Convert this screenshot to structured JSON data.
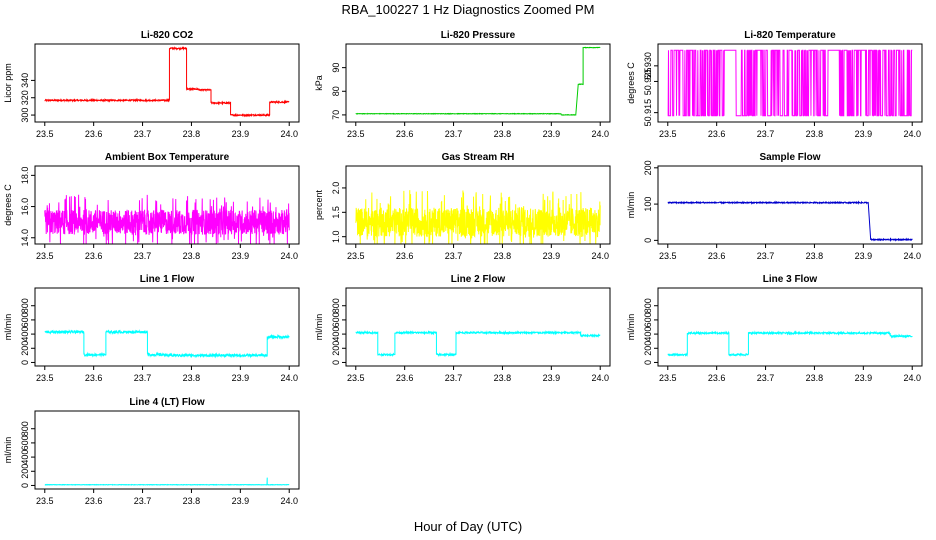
{
  "figure": {
    "title": "RBA_100227  1 Hz Diagnostics Zoomed PM",
    "xlabel": "Hour of Day (UTC)"
  },
  "colors": {
    "red": "#ff0000",
    "green": "#00cc00",
    "magenta": "#ff00ff",
    "yellow": "#ffff00",
    "blue": "#0000cc",
    "cyan": "#00ffff"
  },
  "chart_data": [
    {
      "type": "line",
      "title": "Li-820 CO2",
      "ylabel": "Licor ppm",
      "color": "red",
      "xlim": [
        23.48,
        24.02
      ],
      "ylim": [
        292,
        382
      ],
      "xticks": [
        "23.5",
        "23.6",
        "23.7",
        "23.8",
        "23.9",
        "24.0"
      ],
      "yticks": [
        "300",
        "320",
        "340"
      ],
      "segments": [
        [
          23.5,
          23.755,
          317
        ],
        [
          23.755,
          23.79,
          377
        ],
        [
          23.79,
          23.815,
          330
        ],
        [
          23.815,
          23.84,
          329
        ],
        [
          23.84,
          23.88,
          314
        ],
        [
          23.88,
          23.96,
          300
        ],
        [
          23.96,
          24.0,
          315
        ]
      ],
      "noise": 0.8
    },
    {
      "type": "line",
      "title": "Li-820 Pressure",
      "ylabel": "kPa",
      "color": "green",
      "xlim": [
        23.48,
        24.02
      ],
      "ylim": [
        67,
        100
      ],
      "xticks": [
        "23.5",
        "23.6",
        "23.7",
        "23.8",
        "23.9",
        "24.0"
      ],
      "yticks": [
        "70",
        "80",
        "90"
      ],
      "segments": [
        [
          23.5,
          23.92,
          70.5
        ],
        [
          23.92,
          23.95,
          70.0
        ],
        [
          23.955,
          23.965,
          83
        ],
        [
          23.965,
          24.0,
          98.5
        ]
      ],
      "noise": 0.1
    },
    {
      "type": "line",
      "title": "Li-820 Temperature",
      "ylabel": "degrees C",
      "color": "magenta",
      "xlim": [
        23.48,
        24.02
      ],
      "ylim": [
        50.912,
        50.937
      ],
      "xticks": [
        "23.5",
        "23.6",
        "23.7",
        "23.8",
        "23.9",
        "24.0"
      ],
      "yticks": [
        "50.915",
        "50.925",
        "50.930"
      ],
      "levels": [
        50.914,
        50.935
      ],
      "toggle": true
    },
    {
      "type": "line",
      "title": "Ambient Box Temperature",
      "ylabel": "degrees C",
      "color": "magenta",
      "xlim": [
        23.48,
        24.02
      ],
      "ylim": [
        13.6,
        18.6
      ],
      "xticks": [
        "23.5",
        "23.6",
        "23.7",
        "23.8",
        "23.9",
        "24.0"
      ],
      "yticks": [
        "14.0",
        "16.0",
        "18.0"
      ],
      "base": 15.0,
      "spread": 1.6
    },
    {
      "type": "line",
      "title": "Gas Stream RH",
      "ylabel": "percent",
      "color": "yellow",
      "xlim": [
        23.48,
        24.02
      ],
      "ylim": [
        0.85,
        2.45
      ],
      "xticks": [
        "23.5",
        "23.6",
        "23.7",
        "23.8",
        "23.9",
        "24.0"
      ],
      "yticks": [
        "1.0",
        "1.5",
        "2.0"
      ],
      "base": 1.3,
      "spread": 0.6
    },
    {
      "type": "line",
      "title": "Sample Flow",
      "ylabel": "ml/min",
      "color": "blue",
      "xlim": [
        23.48,
        24.02
      ],
      "ylim": [
        -10,
        205
      ],
      "xticks": [
        "23.5",
        "23.6",
        "23.7",
        "23.8",
        "23.9",
        "24.0"
      ],
      "yticks": [
        "0",
        "100",
        "200"
      ],
      "segments": [
        [
          23.5,
          23.91,
          104
        ],
        [
          23.915,
          24.0,
          2
        ]
      ],
      "noise": 1.5
    },
    {
      "type": "line",
      "title": "Line 1 Flow",
      "ylabel": "ml/min",
      "color": "cyan",
      "xlim": [
        23.48,
        24.02
      ],
      "ylim": [
        -50,
        1050
      ],
      "xticks": [
        "23.5",
        "23.6",
        "23.7",
        "23.8",
        "23.9",
        "24.0"
      ],
      "yticks": [
        "0",
        "200",
        "400",
        "600",
        "800"
      ],
      "segments": [
        [
          23.5,
          23.58,
          430
        ],
        [
          23.58,
          23.625,
          110
        ],
        [
          23.625,
          23.71,
          430
        ],
        [
          23.71,
          23.75,
          110
        ],
        [
          23.75,
          23.955,
          100
        ],
        [
          23.955,
          24.0,
          360
        ]
      ],
      "noise": 18
    },
    {
      "type": "line",
      "title": "Line 2 Flow",
      "ylabel": "ml/min",
      "color": "cyan",
      "xlim": [
        23.48,
        24.02
      ],
      "ylim": [
        -50,
        1050
      ],
      "xticks": [
        "23.5",
        "23.6",
        "23.7",
        "23.8",
        "23.9",
        "24.0"
      ],
      "yticks": [
        "0",
        "200",
        "400",
        "600",
        "800"
      ],
      "segments": [
        [
          23.5,
          23.545,
          420
        ],
        [
          23.545,
          23.58,
          110
        ],
        [
          23.58,
          23.665,
          420
        ],
        [
          23.665,
          23.705,
          110
        ],
        [
          23.705,
          23.96,
          420
        ],
        [
          23.96,
          24.0,
          380
        ]
      ],
      "noise": 12
    },
    {
      "type": "line",
      "title": "Line 3 Flow",
      "ylabel": "ml/min",
      "color": "cyan",
      "xlim": [
        23.48,
        24.02
      ],
      "ylim": [
        -50,
        1050
      ],
      "xticks": [
        "23.5",
        "23.6",
        "23.7",
        "23.8",
        "23.9",
        "24.0"
      ],
      "yticks": [
        "0",
        "200",
        "400",
        "600",
        "800"
      ],
      "segments": [
        [
          23.5,
          23.54,
          110
        ],
        [
          23.54,
          23.625,
          415
        ],
        [
          23.625,
          23.665,
          110
        ],
        [
          23.665,
          23.955,
          415
        ],
        [
          23.955,
          24.0,
          370
        ]
      ],
      "noise": 12
    },
    {
      "type": "line",
      "title": "Line 4 (LT) Flow",
      "ylabel": "ml/min",
      "color": "cyan",
      "xlim": [
        23.48,
        24.02
      ],
      "ylim": [
        -50,
        1050
      ],
      "xticks": [
        "23.5",
        "23.6",
        "23.7",
        "23.8",
        "23.9",
        "24.0"
      ],
      "yticks": [
        "0",
        "200",
        "400",
        "600",
        "800"
      ],
      "segments": [
        [
          23.5,
          24.0,
          10
        ]
      ],
      "spikes": [
        [
          23.955,
          110
        ]
      ],
      "noise": 3
    }
  ]
}
